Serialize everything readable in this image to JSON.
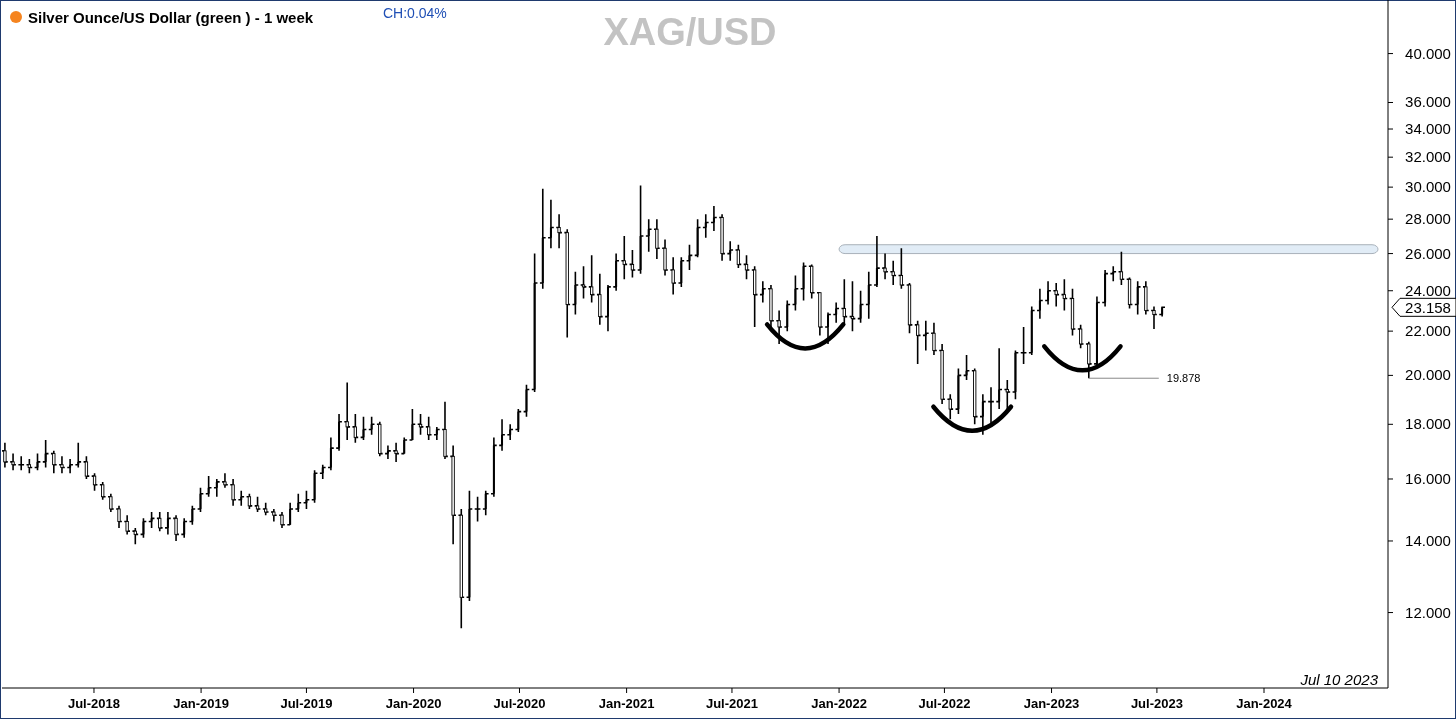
{
  "chart_data": {
    "type": "candlestick",
    "title": "XAG/USD",
    "subtitle": "Silver Ounce/US Dollar (green ) - 1 week",
    "annotations": [
      "CH:0.04%",
      "Jul 10 2023",
      {
        "text": "19.878",
        "x": "2023-03-06",
        "y": 19.878
      },
      "23.158"
    ],
    "color": "#000000",
    "log": "y",
    "grid": false,
    "xlim": [
      "2018-01-24",
      "2024-08-01"
    ],
    "xticks": [
      {
        "value": "2018-07-01",
        "label": "Jul-2018"
      },
      {
        "value": "2019-01-01",
        "label": "Jan-2019"
      },
      {
        "value": "2019-07-01",
        "label": "Jul-2019"
      },
      {
        "value": "2020-01-01",
        "label": "Jan-2020"
      },
      {
        "value": "2020-07-01",
        "label": "Jul-2020"
      },
      {
        "value": "2021-01-01",
        "label": "Jan-2021"
      },
      {
        "value": "2021-07-01",
        "label": "Jul-2021"
      },
      {
        "value": "2022-01-01",
        "label": "Jan-2022"
      },
      {
        "value": "2022-07-01",
        "label": "Jul-2022"
      },
      {
        "value": "2023-01-01",
        "label": "Jan-2023"
      },
      {
        "value": "2023-07-01",
        "label": "Jul-2023"
      },
      {
        "value": "2024-01-01",
        "label": "Jan-2024"
      }
    ],
    "ylim": [
      10.2,
      44.7
    ],
    "yticks": [
      {
        "value": 12,
        "label": "12.000"
      },
      {
        "value": 14,
        "label": "14.000"
      },
      {
        "value": 16,
        "label": "16.000"
      },
      {
        "value": 18,
        "label": "18.000"
      },
      {
        "value": 20,
        "label": "20.000"
      },
      {
        "value": 22,
        "label": "22.000"
      },
      {
        "value": 24,
        "label": "24.000"
      },
      {
        "value": 26,
        "label": "26.000"
      },
      {
        "value": 28,
        "label": "28.000"
      },
      {
        "value": 30,
        "label": "30.000"
      },
      {
        "value": 32,
        "label": "32.000"
      },
      {
        "value": 34,
        "label": "34.000"
      },
      {
        "value": 36,
        "label": "36.000"
      },
      {
        "value": 40,
        "label": "40.000"
      }
    ],
    "bands": [
      {
        "axis": "y",
        "from": 26.0,
        "to": 26.5,
        "color": "#dce9f5"
      }
    ],
    "x": [
      "2018-01-29",
      "2018-02-12",
      "2018-02-26",
      "2018-03-12",
      "2018-03-26",
      "2018-04-09",
      "2018-04-23",
      "2018-05-07",
      "2018-05-21",
      "2018-06-04",
      "2018-06-18",
      "2018-07-02",
      "2018-07-16",
      "2018-07-30",
      "2018-08-13",
      "2018-08-27",
      "2018-09-10",
      "2018-09-24",
      "2018-10-08",
      "2018-10-22",
      "2018-11-05",
      "2018-11-19",
      "2018-12-03",
      "2018-12-17",
      "2018-12-31",
      "2019-01-14",
      "2019-01-28",
      "2019-02-11",
      "2019-02-25",
      "2019-03-11",
      "2019-03-25",
      "2019-04-08",
      "2019-04-22",
      "2019-05-06",
      "2019-05-20",
      "2019-06-03",
      "2019-06-17",
      "2019-07-01",
      "2019-07-15",
      "2019-07-29",
      "2019-08-12",
      "2019-08-26",
      "2019-09-09",
      "2019-09-23",
      "2019-10-07",
      "2019-10-21",
      "2019-11-04",
      "2019-11-18",
      "2019-12-02",
      "2019-12-16",
      "2019-12-30",
      "2020-01-13",
      "2020-01-27",
      "2020-02-10",
      "2020-02-24",
      "2020-03-09",
      "2020-03-23",
      "2020-04-06",
      "2020-04-20",
      "2020-05-04",
      "2020-05-18",
      "2020-06-01",
      "2020-06-15",
      "2020-06-29",
      "2020-07-13",
      "2020-07-27",
      "2020-08-10",
      "2020-08-24",
      "2020-09-07",
      "2020-09-21",
      "2020-10-05",
      "2020-10-19",
      "2020-11-02",
      "2020-11-16",
      "2020-11-30",
      "2020-12-14",
      "2020-12-28",
      "2021-01-11",
      "2021-01-25",
      "2021-02-08",
      "2021-02-22",
      "2021-03-08",
      "2021-03-22",
      "2021-04-05",
      "2021-04-19",
      "2021-05-03",
      "2021-05-17",
      "2021-05-31",
      "2021-06-14",
      "2021-06-28",
      "2021-07-12",
      "2021-07-26",
      "2021-08-09",
      "2021-08-23",
      "2021-09-06",
      "2021-09-20",
      "2021-10-04",
      "2021-10-18",
      "2021-11-01",
      "2021-11-15",
      "2021-11-29",
      "2021-12-13",
      "2021-12-27",
      "2022-01-10",
      "2022-01-24",
      "2022-02-07",
      "2022-02-21",
      "2022-03-07",
      "2022-03-21",
      "2022-04-04",
      "2022-04-18",
      "2022-05-02",
      "2022-05-16",
      "2022-05-30",
      "2022-06-13",
      "2022-06-27",
      "2022-07-11",
      "2022-07-25",
      "2022-08-08",
      "2022-08-22",
      "2022-09-05",
      "2022-09-19",
      "2022-10-03",
      "2022-10-17",
      "2022-10-31",
      "2022-11-14",
      "2022-11-28",
      "2022-12-12",
      "2022-12-26",
      "2023-01-09",
      "2023-01-23",
      "2023-02-06",
      "2023-02-20",
      "2023-03-06",
      "2023-03-20",
      "2023-04-03",
      "2023-04-17",
      "2023-05-01",
      "2023-05-15",
      "2023-05-29",
      "2023-06-12",
      "2023-06-26",
      "2023-07-10"
    ],
    "ohlc": [
      [
        17.0,
        17.3,
        16.4,
        16.6
      ],
      [
        16.6,
        16.9,
        16.3,
        16.5
      ],
      [
        16.5,
        16.8,
        16.3,
        16.5
      ],
      [
        16.5,
        16.7,
        16.2,
        16.4
      ],
      [
        16.4,
        16.9,
        16.3,
        16.6
      ],
      [
        16.6,
        17.4,
        16.4,
        16.9
      ],
      [
        16.9,
        17.0,
        16.2,
        16.5
      ],
      [
        16.5,
        16.8,
        16.2,
        16.4
      ],
      [
        16.4,
        16.7,
        16.2,
        16.5
      ],
      [
        16.5,
        17.3,
        16.4,
        16.6
      ],
      [
        16.6,
        16.8,
        16.0,
        16.1
      ],
      [
        16.1,
        16.2,
        15.6,
        15.8
      ],
      [
        15.8,
        15.9,
        15.3,
        15.4
      ],
      [
        15.4,
        15.5,
        14.9,
        15.0
      ],
      [
        15.0,
        15.1,
        14.4,
        14.6
      ],
      [
        14.6,
        14.8,
        14.2,
        14.3
      ],
      [
        14.3,
        14.4,
        13.9,
        14.2
      ],
      [
        14.2,
        14.7,
        14.1,
        14.6
      ],
      [
        14.6,
        14.9,
        14.4,
        14.7
      ],
      [
        14.7,
        14.9,
        14.3,
        14.4
      ],
      [
        14.4,
        14.9,
        14.2,
        14.7
      ],
      [
        14.7,
        14.8,
        14.0,
        14.2
      ],
      [
        14.2,
        14.7,
        14.1,
        14.6
      ],
      [
        14.6,
        15.1,
        14.5,
        15.0
      ],
      [
        15.0,
        15.7,
        14.9,
        15.5
      ],
      [
        15.5,
        16.1,
        15.4,
        15.7
      ],
      [
        15.7,
        16.0,
        15.4,
        15.9
      ],
      [
        15.9,
        16.2,
        15.7,
        15.8
      ],
      [
        15.8,
        16.0,
        15.1,
        15.3
      ],
      [
        15.3,
        15.6,
        15.1,
        15.4
      ],
      [
        15.4,
        15.5,
        15.0,
        15.1
      ],
      [
        15.1,
        15.4,
        14.9,
        15.0
      ],
      [
        15.0,
        15.2,
        14.8,
        14.9
      ],
      [
        14.9,
        15.0,
        14.6,
        14.8
      ],
      [
        14.8,
        14.9,
        14.4,
        14.5
      ],
      [
        14.5,
        15.2,
        14.5,
        15.0
      ],
      [
        15.0,
        15.5,
        14.9,
        15.2
      ],
      [
        15.2,
        15.6,
        15.0,
        15.3
      ],
      [
        15.3,
        16.3,
        15.2,
        16.2
      ],
      [
        16.2,
        16.5,
        16.0,
        16.4
      ],
      [
        16.4,
        17.5,
        16.3,
        17.1
      ],
      [
        17.1,
        18.4,
        17.0,
        18.1
      ],
      [
        18.1,
        19.7,
        17.4,
        17.9
      ],
      [
        17.9,
        18.4,
        17.3,
        17.5
      ],
      [
        17.5,
        18.3,
        17.4,
        17.8
      ],
      [
        17.8,
        18.3,
        17.6,
        18.0
      ],
      [
        18.0,
        18.1,
        16.8,
        16.9
      ],
      [
        16.9,
        17.2,
        16.7,
        17.0
      ],
      [
        17.0,
        17.3,
        16.6,
        16.9
      ],
      [
        16.9,
        17.5,
        16.9,
        17.4
      ],
      [
        17.4,
        18.6,
        17.4,
        18.0
      ],
      [
        18.0,
        18.4,
        17.6,
        17.9
      ],
      [
        17.9,
        18.3,
        17.4,
        17.6
      ],
      [
        17.6,
        17.9,
        17.4,
        17.8
      ],
      [
        17.8,
        18.9,
        16.7,
        16.8
      ],
      [
        16.8,
        17.2,
        13.9,
        14.8
      ],
      [
        14.8,
        15.0,
        11.6,
        12.4
      ],
      [
        12.4,
        15.6,
        12.3,
        15.0
      ],
      [
        15.0,
        15.4,
        14.6,
        15.0
      ],
      [
        15.0,
        15.6,
        14.8,
        15.5
      ],
      [
        15.5,
        17.5,
        15.4,
        17.2
      ],
      [
        17.2,
        18.2,
        17.0,
        17.6
      ],
      [
        17.6,
        18.0,
        17.4,
        17.8
      ],
      [
        17.8,
        18.6,
        17.7,
        18.5
      ],
      [
        18.5,
        19.6,
        18.3,
        19.4
      ],
      [
        19.4,
        26.0,
        19.3,
        24.4
      ],
      [
        24.4,
        29.9,
        24.1,
        26.9
      ],
      [
        26.9,
        29.2,
        26.3,
        27.5
      ],
      [
        27.5,
        28.3,
        26.3,
        27.2
      ],
      [
        27.2,
        27.4,
        21.7,
        23.3
      ],
      [
        23.3,
        25.0,
        22.8,
        24.3
      ],
      [
        24.3,
        25.3,
        23.6,
        24.2
      ],
      [
        24.2,
        25.9,
        23.4,
        23.8
      ],
      [
        23.8,
        24.9,
        22.3,
        22.7
      ],
      [
        22.7,
        24.3,
        22.0,
        24.2
      ],
      [
        24.2,
        26.0,
        24.0,
        25.6
      ],
      [
        25.6,
        27.0,
        24.6,
        25.4
      ],
      [
        25.4,
        26.2,
        24.7,
        25.1
      ],
      [
        25.1,
        30.1,
        24.9,
        27.0
      ],
      [
        27.0,
        28.0,
        26.1,
        27.4
      ],
      [
        27.4,
        28.0,
        25.7,
        26.3
      ],
      [
        26.3,
        26.8,
        24.8,
        25.1
      ],
      [
        25.1,
        25.8,
        23.8,
        24.4
      ],
      [
        24.4,
        25.8,
        24.2,
        25.6
      ],
      [
        25.6,
        26.5,
        25.1,
        25.9
      ],
      [
        25.9,
        28.0,
        25.8,
        27.5
      ],
      [
        27.5,
        28.3,
        26.9,
        27.8
      ],
      [
        27.8,
        28.8,
        27.3,
        28.1
      ],
      [
        28.1,
        28.3,
        25.6,
        26.0
      ],
      [
        26.0,
        26.7,
        25.6,
        26.2
      ],
      [
        26.2,
        26.5,
        25.2,
        25.4
      ],
      [
        25.4,
        25.9,
        24.6,
        25.1
      ],
      [
        25.1,
        25.3,
        22.2,
        23.8
      ],
      [
        23.8,
        24.5,
        23.4,
        24.1
      ],
      [
        24.1,
        24.3,
        22.2,
        22.5
      ],
      [
        22.5,
        23.0,
        21.4,
        22.2
      ],
      [
        22.2,
        23.5,
        22.0,
        23.3
      ],
      [
        23.3,
        24.8,
        23.0,
        24.1
      ],
      [
        24.1,
        25.5,
        23.5,
        25.3
      ],
      [
        25.3,
        25.4,
        23.6,
        23.9
      ],
      [
        23.9,
        23.9,
        21.8,
        22.2
      ],
      [
        22.2,
        22.9,
        21.4,
        22.8
      ],
      [
        22.8,
        23.4,
        22.4,
        23.1
      ],
      [
        23.1,
        24.6,
        22.3,
        22.7
      ],
      [
        22.7,
        24.5,
        22.0,
        22.6
      ],
      [
        22.6,
        24.0,
        22.4,
        23.3
      ],
      [
        23.3,
        25.0,
        22.6,
        24.3
      ],
      [
        24.3,
        27.0,
        24.2,
        25.2
      ],
      [
        25.2,
        26.0,
        24.6,
        25.0
      ],
      [
        25.0,
        25.6,
        24.3,
        24.8
      ],
      [
        24.8,
        26.3,
        24.1,
        24.3
      ],
      [
        24.3,
        24.4,
        21.9,
        22.3
      ],
      [
        22.3,
        22.5,
        20.5,
        21.8
      ],
      [
        21.8,
        22.5,
        21.1,
        21.9
      ],
      [
        21.9,
        22.4,
        20.9,
        21.1
      ],
      [
        21.1,
        21.4,
        18.8,
        19.0
      ],
      [
        19.0,
        19.2,
        18.2,
        18.6
      ],
      [
        18.6,
        20.3,
        18.4,
        20.0
      ],
      [
        20.0,
        20.9,
        19.8,
        20.2
      ],
      [
        20.2,
        20.3,
        18.0,
        18.3
      ],
      [
        18.3,
        19.2,
        17.6,
        18.9
      ],
      [
        18.9,
        19.5,
        18.0,
        18.9
      ],
      [
        18.9,
        21.2,
        18.6,
        19.4
      ],
      [
        19.4,
        19.8,
        18.5,
        19.3
      ],
      [
        19.3,
        21.1,
        19.0,
        21.0
      ],
      [
        21.0,
        22.2,
        20.5,
        21.0
      ],
      [
        21.0,
        23.2,
        20.9,
        23.0
      ],
      [
        23.0,
        24.1,
        22.6,
        23.5
      ],
      [
        23.5,
        24.5,
        23.3,
        24.0
      ],
      [
        24.0,
        24.4,
        23.2,
        23.8
      ],
      [
        23.8,
        24.6,
        23.0,
        23.6
      ],
      [
        23.6,
        24.1,
        21.8,
        22.1
      ],
      [
        22.1,
        22.3,
        21.2,
        21.4
      ],
      [
        21.4,
        21.5,
        19.878,
        20.5
      ],
      [
        20.5,
        23.7,
        20.4,
        23.4
      ],
      [
        23.4,
        25.1,
        23.2,
        24.9
      ],
      [
        24.9,
        25.3,
        24.5,
        25.0
      ],
      [
        25.0,
        26.1,
        24.3,
        24.6
      ],
      [
        24.6,
        24.7,
        23.1,
        23.3
      ],
      [
        23.3,
        24.5,
        22.8,
        24.2
      ],
      [
        24.2,
        24.5,
        22.8,
        23.0
      ],
      [
        23.0,
        23.2,
        22.1,
        22.8
      ],
      [
        22.8,
        23.2,
        22.7,
        23.158
      ]
    ]
  }
}
